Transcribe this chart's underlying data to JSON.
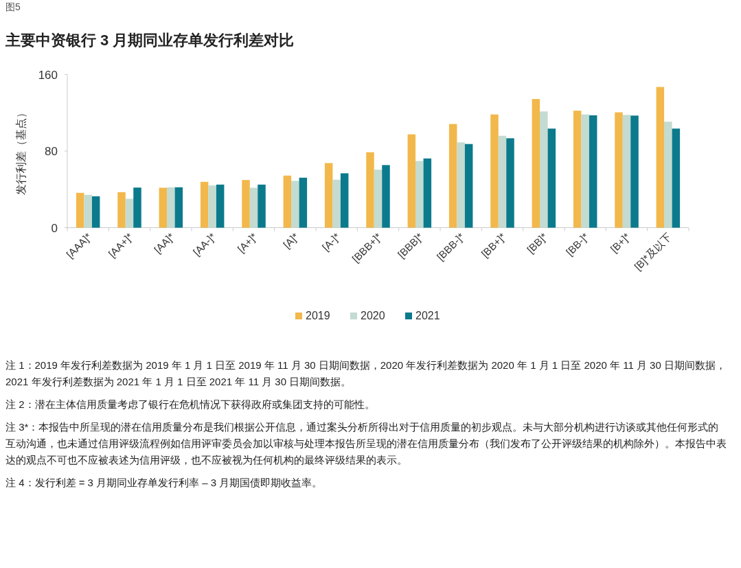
{
  "chart_data": {
    "type": "bar",
    "title": "主要中资银行 3 月期同业存单发行利差对比",
    "ylabel": "发行利差（基点）",
    "categories": [
      "[AAA]*",
      "[AA+]*",
      "[AA]*",
      "[AA-]*",
      "[A+]*",
      "[A]*",
      "[A-]*",
      "[BBB+]*",
      "[BBB]*",
      "[BBB-]*",
      "[BB+]*",
      "[BB]*",
      "[BB-]*",
      "[B+]*",
      "[B]*及以下"
    ],
    "series": [
      {
        "name": "2019",
        "color": "#f2b84b",
        "values": [
          36.4,
          37.1,
          41.7,
          47.9,
          49.8,
          54.4,
          67.5,
          78.8,
          97.5,
          108.3,
          118.3,
          134.4,
          122.2,
          120.5,
          147
        ]
      },
      {
        "name": "2020",
        "color": "#c3dbd0",
        "values": [
          34.3,
          30.2,
          42.2,
          44.1,
          41.7,
          48.9,
          50.1,
          60.6,
          69.7,
          89.1,
          96,
          121.4,
          118.3,
          117.8,
          110.7
        ]
      },
      {
        "name": "2021",
        "color": "#0b7a8c",
        "values": [
          32.8,
          41.9,
          42.2,
          45,
          45,
          52.2,
          56.8,
          65.4,
          72.3,
          87.4,
          93.4,
          103.5,
          117.4,
          117.1,
          103.5
        ]
      }
    ],
    "ylim": [
      0,
      160
    ],
    "yticks": [
      0,
      80,
      160
    ],
    "legend": "bottom",
    "annotations": [
      "图5",
      "注 1：2019 年发行利差数据为 2019 年 1 月 1 日至 2019 年 11 月 30 日期间数据，2020 年发行利差数据为 2020 年 1 月 1 日至 2020 年 11 月 30 日期间数据，2021 年发行利差数据为 2021 年 1 月 1 日至 2021 年 11 月 30 日期间数据。",
      "注 2：潜在主体信用质量考虑了银行在危机情况下获得政府或集团支持的可能性。",
      "注 3*：本报告中所呈现的潜在信用质量分布是我们根据公开信息，通过案头分析所得出对于信用质量的初步观点。未与大部分机构进行访谈或其他任何形式的互动沟通，也未通过信用评级流程例如信用评审委员会加以审核与处理本报告所呈现的潜在信用质量分布（我们发布了公开评级结果的机构除外）。本报告中表达的观点不可也不应被表述为信用评级，也不应被视为任何机构的最终评级结果的表示。",
      "注 4：发行利差 = 3 月期同业存单发行利率 – 3 月期国债即期收益率。"
    ]
  }
}
